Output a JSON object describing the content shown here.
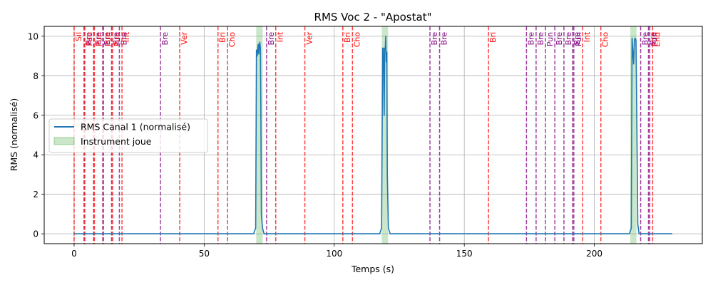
{
  "chart_data": {
    "type": "line",
    "title": "RMS Voc 2 - \"Apostat\"",
    "xlabel": "Temps (s)",
    "ylabel": "RMS (normalisé)",
    "xlim": [
      -11.5,
      241.5
    ],
    "ylim": [
      -0.5,
      10.5
    ],
    "xticks": [
      0,
      50,
      100,
      150,
      200
    ],
    "yticks": [
      0,
      2,
      4,
      6,
      8,
      10
    ],
    "grid": true,
    "legend_position": "center-left",
    "series": [
      {
        "name": "RMS Canal 1 (normalisé)",
        "color": "#1f77b4",
        "x": [
          0,
          69.0,
          69.8,
          70.1,
          70.4,
          70.6,
          70.8,
          71.0,
          71.2,
          71.4,
          71.6,
          71.8,
          72.0,
          72.4,
          73.0,
          117.5,
          118.2,
          118.6,
          118.9,
          119.2,
          119.4,
          119.6,
          119.8,
          120.0,
          120.2,
          120.4,
          120.8,
          121.5,
          213.5,
          214.2,
          214.5,
          214.8,
          215.1,
          215.4,
          215.7,
          216.0,
          216.3,
          216.7,
          217.2,
          230
        ],
        "y": [
          0,
          0,
          0.3,
          9.3,
          9.0,
          9.4,
          9.6,
          9.1,
          9.5,
          9.7,
          9.4,
          6.0,
          1.0,
          0.3,
          0,
          0,
          0.3,
          9.4,
          9.4,
          6.0,
          9.4,
          9.3,
          10.0,
          8.7,
          9.2,
          3.0,
          0.3,
          0,
          0,
          0.3,
          9.9,
          9.2,
          8.6,
          9.8,
          9.9,
          9.8,
          6.0,
          0.5,
          0,
          0
        ]
      }
    ],
    "shaded_regions": {
      "name": "Instrument joue",
      "color": "#2ca02c",
      "opacity": 0.25,
      "intervals": [
        [
          70.0,
          72.5
        ],
        [
          118.3,
          120.7
        ],
        [
          213.8,
          216.2
        ]
      ]
    },
    "annotation_colors": {
      "red": "#ff0000",
      "purple": "#800080"
    },
    "annotations": [
      {
        "x": 0.0,
        "label": "Sil",
        "color": "red"
      },
      {
        "x": 3.8,
        "label": "Bre",
        "color": "purple"
      },
      {
        "x": 4.1,
        "label": "Pau",
        "color": "red"
      },
      {
        "x": 7.5,
        "label": "Bre",
        "color": "purple"
      },
      {
        "x": 7.8,
        "label": "Pun",
        "color": "red"
      },
      {
        "x": 11.0,
        "label": "Bre",
        "color": "purple"
      },
      {
        "x": 11.3,
        "label": "Pun",
        "color": "red"
      },
      {
        "x": 14.4,
        "label": "Bre",
        "color": "purple"
      },
      {
        "x": 14.8,
        "label": "Pun",
        "color": "red"
      },
      {
        "x": 17.4,
        "label": "Bre",
        "color": "purple"
      },
      {
        "x": 18.4,
        "label": "Int",
        "color": "red"
      },
      {
        "x": 33.2,
        "label": "Bre",
        "color": "purple"
      },
      {
        "x": 40.6,
        "label": "Ver",
        "color": "red"
      },
      {
        "x": 55.3,
        "label": "Bri",
        "color": "red"
      },
      {
        "x": 59.0,
        "label": "Cho",
        "color": "red"
      },
      {
        "x": 74.0,
        "label": "Bre",
        "color": "purple"
      },
      {
        "x": 77.5,
        "label": "Int",
        "color": "red"
      },
      {
        "x": 88.7,
        "label": "Ver",
        "color": "red"
      },
      {
        "x": 103.3,
        "label": "Bri",
        "color": "red"
      },
      {
        "x": 107.0,
        "label": "Cho",
        "color": "red"
      },
      {
        "x": 136.8,
        "label": "Bre",
        "color": "purple"
      },
      {
        "x": 140.5,
        "label": "Bre",
        "color": "purple"
      },
      {
        "x": 159.3,
        "label": "Bri",
        "color": "red"
      },
      {
        "x": 173.9,
        "label": "Bre",
        "color": "purple"
      },
      {
        "x": 177.6,
        "label": "Bre",
        "color": "purple"
      },
      {
        "x": 181.2,
        "label": "Pun",
        "color": "purple"
      },
      {
        "x": 184.8,
        "label": "Bre",
        "color": "purple"
      },
      {
        "x": 188.3,
        "label": "Bre",
        "color": "purple"
      },
      {
        "x": 191.6,
        "label": "Bre",
        "color": "purple"
      },
      {
        "x": 192.1,
        "label": "Pun",
        "color": "purple"
      },
      {
        "x": 195.5,
        "label": "Int",
        "color": "red"
      },
      {
        "x": 202.5,
        "label": "Cho",
        "color": "red"
      },
      {
        "x": 217.8,
        "label": "Bre",
        "color": "purple"
      },
      {
        "x": 220.8,
        "label": "Bre",
        "color": "purple"
      },
      {
        "x": 221.3,
        "label": "Pun",
        "color": "purple"
      },
      {
        "x": 222.4,
        "label": "End",
        "color": "red"
      }
    ]
  }
}
